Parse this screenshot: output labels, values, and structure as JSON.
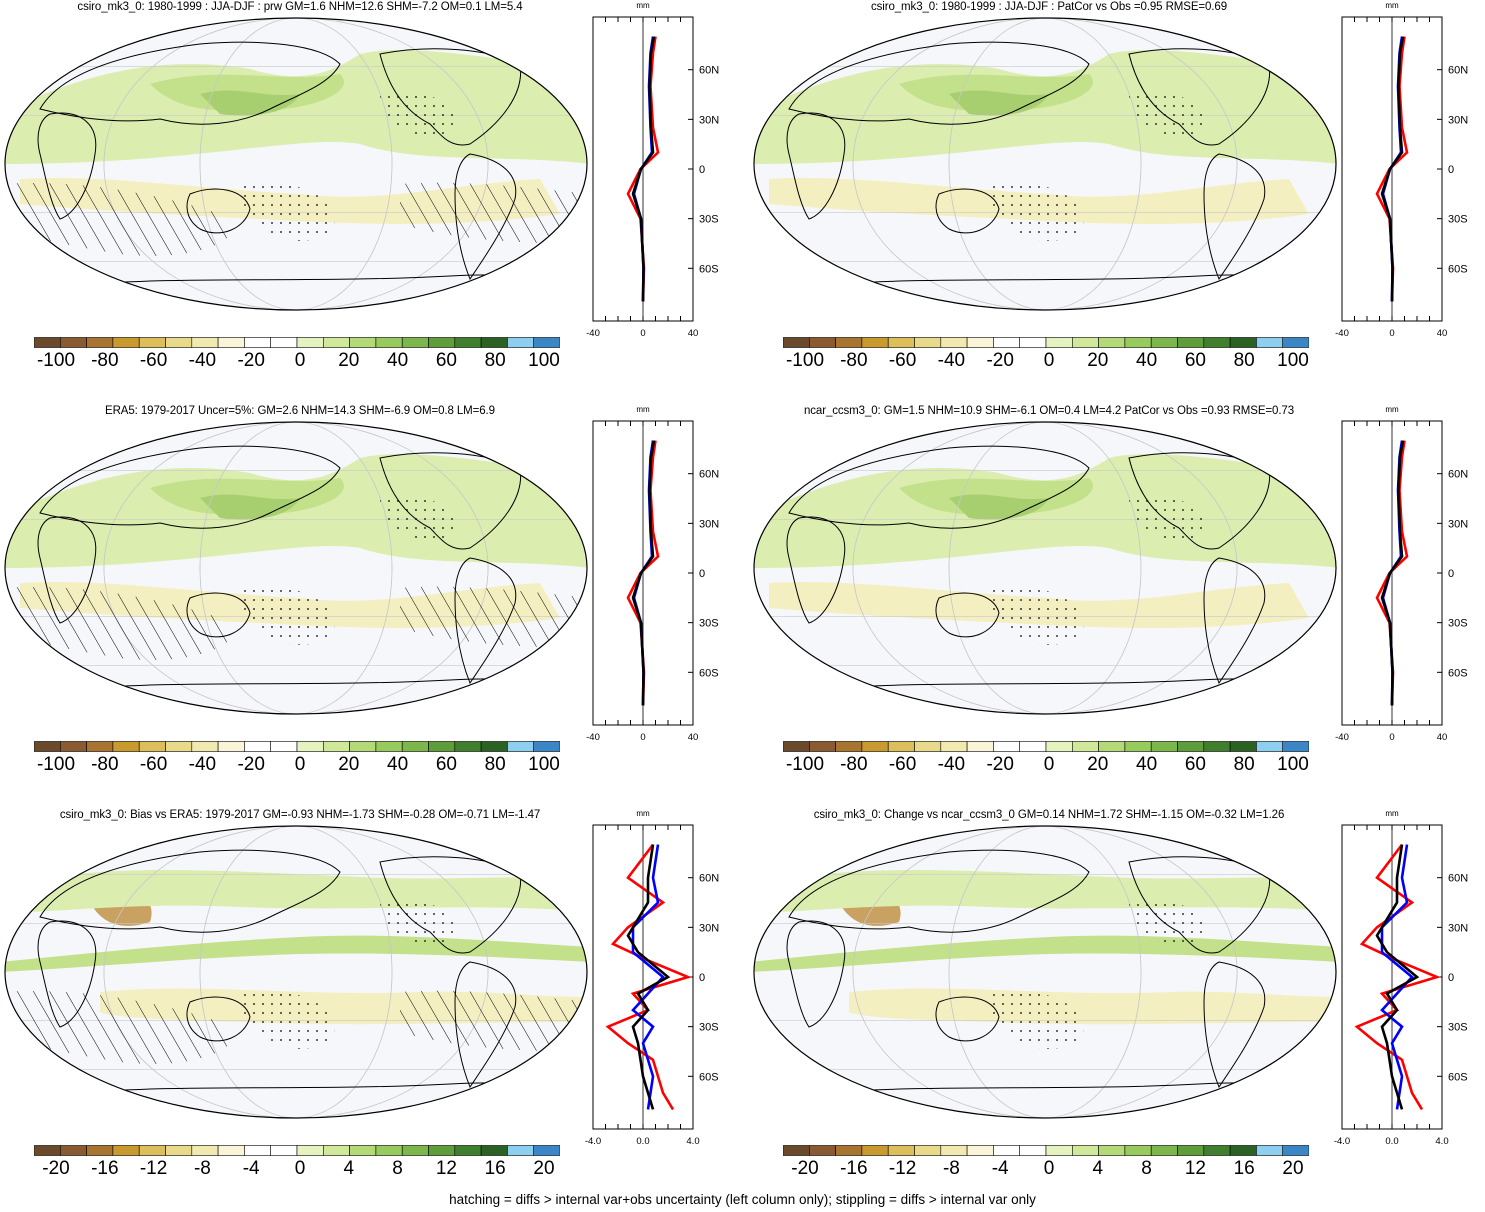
{
  "panels": [
    {
      "id": "tl",
      "title": "csiro_mk3_0: 1980-1999 : JJA-DJF : prw GM=1.6 NHM=12.6 SHM=-7.2 OM=0.1 LM=5.4",
      "colorbar_labels": [
        "-100",
        "-80",
        "-60",
        "-40",
        "-20",
        "0",
        "20",
        "40",
        "60",
        "80",
        "100"
      ],
      "profile_unit": "mm",
      "profile_xticks": [
        "-40",
        "0",
        "40"
      ],
      "profile_yticks": [
        "60N",
        "30N",
        "0",
        "30S",
        "60S"
      ]
    },
    {
      "id": "tr",
      "title": "csiro_mk3_0: 1980-1999 : JJA-DJF : PatCor vs Obs =0.95 RMSE=0.69",
      "colorbar_labels": [
        "-100",
        "-80",
        "-60",
        "-40",
        "-20",
        "0",
        "20",
        "40",
        "60",
        "80",
        "100"
      ],
      "profile_unit": "mm",
      "profile_xticks": [
        "-40",
        "0",
        "40"
      ],
      "profile_yticks": [
        "60N",
        "30N",
        "0",
        "30S",
        "60S"
      ]
    },
    {
      "id": "ml",
      "title": "ERA5: 1979-2017 Uncer=5%: GM=2.6 NHM=14.3 SHM=-6.9 OM=0.8 LM=6.9",
      "colorbar_labels": [
        "-100",
        "-80",
        "-60",
        "-40",
        "-20",
        "0",
        "20",
        "40",
        "60",
        "80",
        "100"
      ],
      "profile_unit": "mm",
      "profile_xticks": [
        "-40",
        "0",
        "40"
      ],
      "profile_yticks": [
        "60N",
        "30N",
        "0",
        "30S",
        "60S"
      ]
    },
    {
      "id": "mr",
      "title": "ncar_ccsm3_0: GM=1.5 NHM=10.9 SHM=-6.1 OM=0.4 LM=4.2 PatCor vs Obs =0.93 RMSE=0.73",
      "colorbar_labels": [
        "-100",
        "-80",
        "-60",
        "-40",
        "-20",
        "0",
        "20",
        "40",
        "60",
        "80",
        "100"
      ],
      "profile_unit": "mm",
      "profile_xticks": [
        "-40",
        "0",
        "40"
      ],
      "profile_yticks": [
        "60N",
        "30N",
        "0",
        "30S",
        "60S"
      ]
    },
    {
      "id": "bl",
      "title": "csiro_mk3_0: Bias vs ERA5: 1979-2017 GM=-0.93 NHM=-1.73 SHM=-0.28 OM=-0.71 LM=-1.47",
      "colorbar_labels": [
        "-20",
        "-16",
        "-12",
        "-8",
        "-4",
        "0",
        "4",
        "8",
        "12",
        "16",
        "20"
      ],
      "profile_unit": "mm",
      "profile_xticks": [
        "-4.0",
        "0.0",
        "4.0"
      ],
      "profile_yticks": [
        "60N",
        "30N",
        "0",
        "30S",
        "60S"
      ]
    },
    {
      "id": "br",
      "title": "csiro_mk3_0: Change vs ncar_ccsm3_0 GM=0.14 NHM=1.72 SHM=-1.15 OM=-0.32 LM=1.26",
      "colorbar_labels": [
        "-20",
        "-16",
        "-12",
        "-8",
        "-4",
        "0",
        "4",
        "8",
        "12",
        "16",
        "20"
      ],
      "profile_unit": "mm",
      "profile_xticks": [
        "-4.0",
        "0.0",
        "4.0"
      ],
      "profile_yticks": [
        "60N",
        "30N",
        "0",
        "30S",
        "60S"
      ]
    }
  ],
  "colorbar_colors": [
    "#6b4a2b",
    "#8a5a32",
    "#a8742f",
    "#c99b2f",
    "#dcbf5a",
    "#e9d98a",
    "#f2e9b0",
    "#faf5d8",
    "#ffffff",
    "#ffffff",
    "#e5f3c0",
    "#cfe89a",
    "#b4da78",
    "#98cb5d",
    "#7db64a",
    "#5f9c3a",
    "#3f7f2e",
    "#2b6224",
    "#8ecff0",
    "#3a86c6"
  ],
  "profile_line_colors": {
    "model": "#ff0000",
    "obs": "#0000ff",
    "mean": "#000000"
  },
  "footer": "hatching = diffs > internal var+obs uncertainty (left column only); stippling = diffs > internal var only"
}
